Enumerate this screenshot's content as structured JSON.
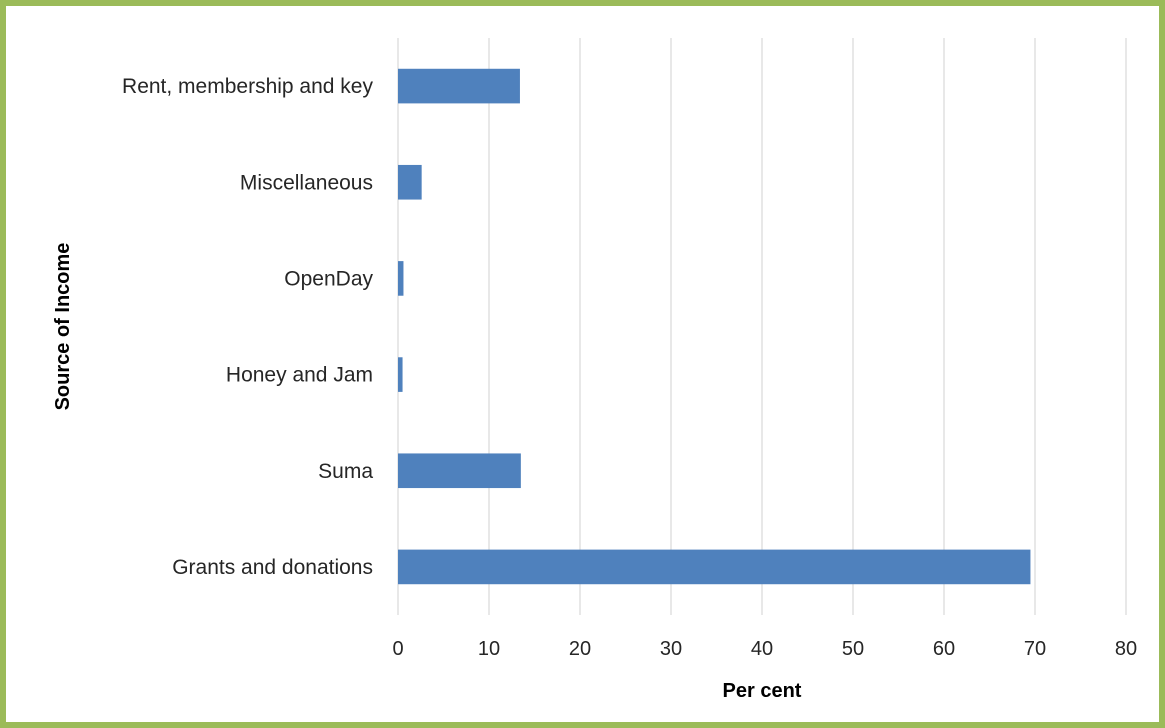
{
  "chart_data": {
    "type": "bar",
    "orientation": "horizontal",
    "categories": [
      "Grants and donations",
      "Suma",
      "Honey and Jam",
      "OpenDay",
      "Miscellaneous",
      "Rent, membership and key"
    ],
    "values": [
      69.5,
      13.5,
      0.5,
      0.6,
      2.6,
      13.4
    ],
    "xlabel": "Per cent",
    "ylabel": "Source of Income",
    "xlim": [
      0,
      80
    ],
    "xticks": [
      "0",
      "10",
      "20",
      "30",
      "40",
      "50",
      "60",
      "70",
      "80"
    ],
    "grid": "vertical",
    "legend": "none",
    "bar_color": "#4f81bd",
    "grid_color": "#d9d9d9",
    "frame_color": "#9bbb59"
  }
}
